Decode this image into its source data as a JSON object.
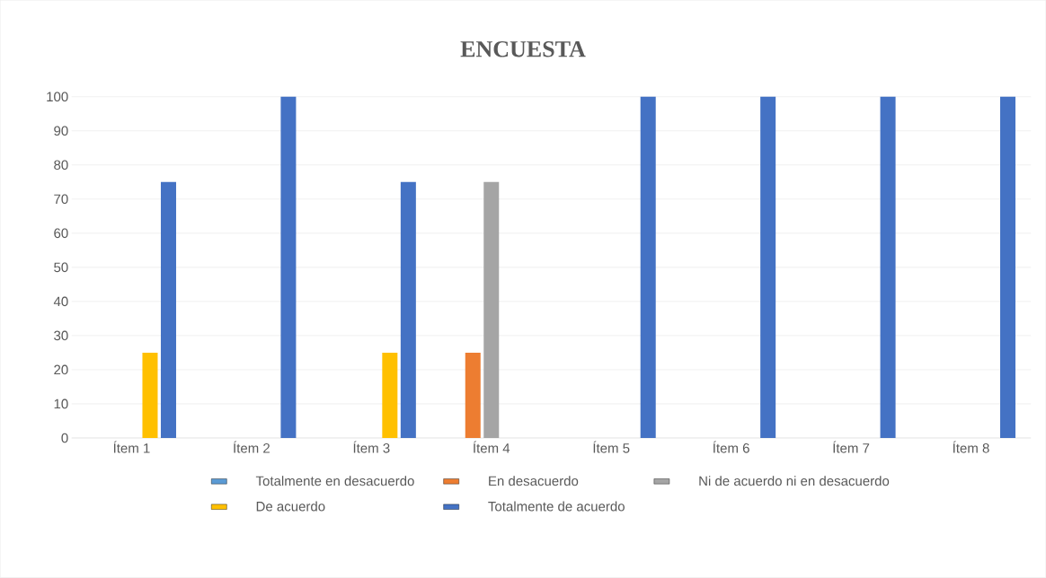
{
  "chart_data": {
    "type": "bar",
    "title": "ENCUESTA",
    "categories": [
      "Ítem 1",
      "Ítem 2",
      "Ítem 3",
      "Ítem 4",
      "Ítem 5",
      "Ítem 6",
      "Ítem 7",
      "Ítem 8"
    ],
    "series": [
      {
        "name": "Totalmente en desacuerdo",
        "color": "#5b9bd5",
        "values": [
          0,
          0,
          0,
          0,
          0,
          0,
          0,
          0
        ]
      },
      {
        "name": "En desacuerdo",
        "color": "#ed7d31",
        "values": [
          0,
          0,
          0,
          25,
          0,
          0,
          0,
          0
        ]
      },
      {
        "name": "Ni de acuerdo ni en desacuerdo",
        "color": "#a5a5a5",
        "values": [
          0,
          0,
          0,
          75,
          0,
          0,
          0,
          0
        ]
      },
      {
        "name": "De acuerdo",
        "color": "#ffc000",
        "values": [
          25,
          0,
          25,
          0,
          0,
          0,
          0,
          0
        ]
      },
      {
        "name": "Totalmente de acuerdo",
        "color": "#4472c4",
        "values": [
          75,
          100,
          75,
          0,
          100,
          100,
          100,
          100
        ]
      }
    ],
    "ylim": [
      0,
      100
    ],
    "yticks": [
      0,
      10,
      20,
      30,
      40,
      50,
      60,
      70,
      80,
      90,
      100
    ],
    "grid": "y",
    "legend": "bottom"
  }
}
